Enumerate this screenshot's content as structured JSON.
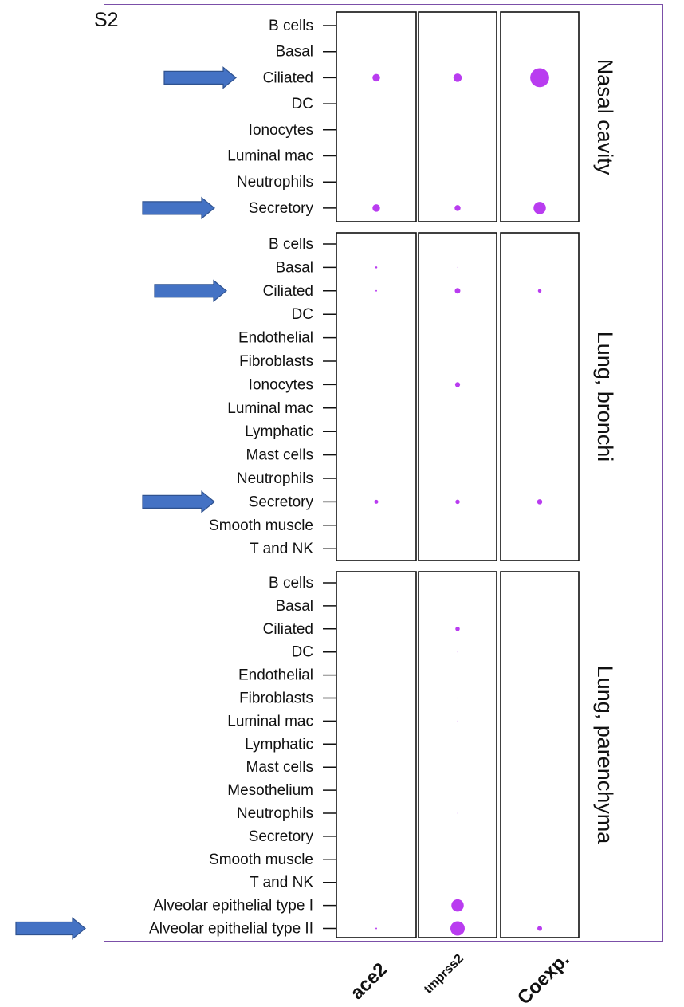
{
  "cropped_title": "S2",
  "chart_data": {
    "type": "scatter",
    "subtype": "dot-plot",
    "columns": [
      "ace2",
      "tmprss2",
      "Coexp."
    ],
    "dot_color": "#b93cf0",
    "arrow_color": "#4472c4",
    "panels": [
      {
        "name": "Nasal cavity",
        "rows": [
          "B cells",
          "Basal",
          "Ciliated",
          "DC",
          "Ionocytes",
          "Luminal mac",
          "Neutrophils",
          "Secretory"
        ],
        "dots": [
          {
            "row": "Ciliated",
            "column": "ace2",
            "size": 0.38
          },
          {
            "row": "Ciliated",
            "column": "tmprss2",
            "size": 0.42
          },
          {
            "row": "Ciliated",
            "column": "Coexp.",
            "size": 0.95
          },
          {
            "row": "Secretory",
            "column": "ace2",
            "size": 0.38
          },
          {
            "row": "Secretory",
            "column": "tmprss2",
            "size": 0.3
          },
          {
            "row": "Secretory",
            "column": "Coexp.",
            "size": 0.62
          }
        ],
        "highlighted_rows": [
          "Ciliated",
          "Secretory"
        ]
      },
      {
        "name": "Lung, bronchi",
        "rows": [
          "B cells",
          "Basal",
          "Ciliated",
          "DC",
          "Endothelial",
          "Fibroblasts",
          "Ionocytes",
          "Luminal mac",
          "Lymphatic",
          "Mast cells",
          "Neutrophils",
          "Secretory",
          "Smooth muscle",
          "T and NK"
        ],
        "dots": [
          {
            "row": "Basal",
            "column": "ace2",
            "size": 0.1
          },
          {
            "row": "Basal",
            "column": "tmprss2",
            "size": 0.05
          },
          {
            "row": "Ciliated",
            "column": "ace2",
            "size": 0.08
          },
          {
            "row": "Ciliated",
            "column": "tmprss2",
            "size": 0.28
          },
          {
            "row": "Ciliated",
            "column": "Coexp.",
            "size": 0.18
          },
          {
            "row": "Ionocytes",
            "column": "tmprss2",
            "size": 0.25
          },
          {
            "row": "Secretory",
            "column": "ace2",
            "size": 0.2
          },
          {
            "row": "Secretory",
            "column": "tmprss2",
            "size": 0.22
          },
          {
            "row": "Secretory",
            "column": "Coexp.",
            "size": 0.26
          }
        ],
        "highlighted_rows": [
          "Ciliated",
          "Secretory"
        ]
      },
      {
        "name": "Lung, parenchyma",
        "rows": [
          "B cells",
          "Basal",
          "Ciliated",
          "DC",
          "Endothelial",
          "Fibroblasts",
          "Luminal mac",
          "Lymphatic",
          "Mast cells",
          "Mesothelium",
          "Neutrophils",
          "Secretory",
          "Smooth muscle",
          "T and NK",
          "Alveolar epithelial type I",
          "Alveolar epithelial type II"
        ],
        "dots": [
          {
            "row": "Ciliated",
            "column": "tmprss2",
            "size": 0.22
          },
          {
            "row": "DC",
            "column": "tmprss2",
            "size": 0.03
          },
          {
            "row": "Fibroblasts",
            "column": "tmprss2",
            "size": 0.03
          },
          {
            "row": "Luminal mac",
            "column": "tmprss2",
            "size": 0.03
          },
          {
            "row": "Neutrophils",
            "column": "tmprss2",
            "size": 0.02
          },
          {
            "row": "Alveolar epithelial type I",
            "column": "tmprss2",
            "size": 0.62
          },
          {
            "row": "Alveolar epithelial type II",
            "column": "ace2",
            "size": 0.08
          },
          {
            "row": "Alveolar epithelial type II",
            "column": "tmprss2",
            "size": 0.72
          },
          {
            "row": "Alveolar epithelial type II",
            "column": "Coexp.",
            "size": 0.24
          }
        ],
        "highlighted_rows": [
          "Alveolar epithelial type II"
        ]
      }
    ]
  }
}
